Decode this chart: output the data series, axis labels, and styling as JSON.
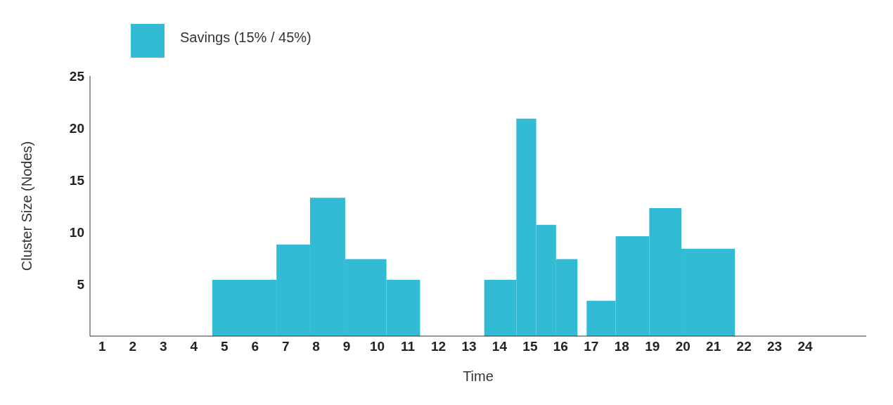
{
  "chart_data": {
    "type": "histogram",
    "xlabel": "Time",
    "ylabel": "Cluster Size (Nodes)",
    "bins": [
      4.6,
      6.7,
      7.8,
      8.95,
      10.3,
      11.4,
      13.5,
      14.55,
      15.2,
      15.85,
      16.55,
      16.85,
      17.8,
      18.9,
      19.95,
      21.7
    ],
    "series": [
      {
        "name": "Savings (15% / 45%)",
        "color": "#31bbd4",
        "values": [
          5.4,
          8.8,
          13.3,
          7.4,
          5.4,
          0,
          5.4,
          20.9,
          10.7,
          7.4,
          0,
          3.4,
          9.6,
          12.3,
          8.4
        ]
      }
    ],
    "xlim": [
      0.6,
      26
    ],
    "xticks": [
      1,
      2,
      3,
      4,
      5,
      6,
      7,
      8,
      9,
      10,
      11,
      12,
      13,
      14,
      15,
      16,
      17,
      18,
      19,
      20,
      21,
      22,
      23,
      24
    ],
    "ylim": [
      0,
      25
    ],
    "yticks": [
      5,
      10,
      15,
      20,
      25
    ],
    "grid": false,
    "legend": "top left"
  }
}
